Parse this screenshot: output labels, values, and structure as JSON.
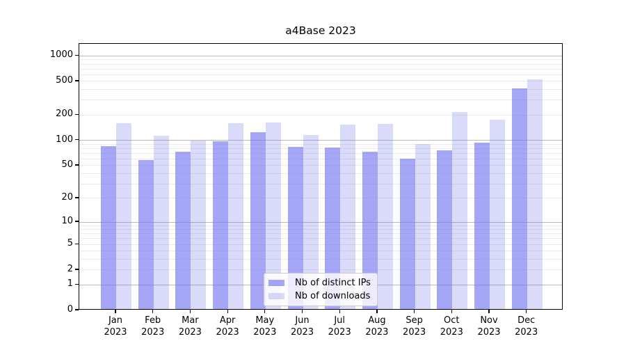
{
  "title": "a4Base 2023",
  "chart_data": {
    "type": "bar",
    "title": "a4Base 2023",
    "categories": [
      "Jan 2023",
      "Feb 2023",
      "Mar 2023",
      "Apr 2023",
      "May 2023",
      "Jun 2023",
      "Jul 2023",
      "Aug 2023",
      "Sep 2023",
      "Oct 2023",
      "Nov 2023",
      "Dec 2023"
    ],
    "series": [
      {
        "name": "Nb of distinct IPs",
        "color": "rgba(118,118,241,0.65)",
        "flat_color": "#a6a6f6",
        "values": [
          82,
          56,
          71,
          94,
          120,
          81,
          79,
          70,
          58,
          73,
          90,
          401
        ]
      },
      {
        "name": "Nb of downloads",
        "color": "rgba(107,107,231,0.25)",
        "flat_color": "#dadaf9",
        "values": [
          153,
          110,
          95,
          154,
          157,
          111,
          148,
          150,
          87,
          209,
          170,
          506
        ]
      }
    ],
    "yscale": "log1p",
    "ylim": [
      0,
      1380
    ],
    "yticks": [
      1000,
      500,
      200,
      100,
      50,
      20,
      10,
      5,
      2,
      1,
      0
    ],
    "major_gridlines": [
      1,
      10,
      100,
      1000
    ],
    "minor_gridlines": [
      2,
      3,
      4,
      5,
      6,
      7,
      8,
      9,
      20,
      30,
      40,
      50,
      60,
      70,
      80,
      90,
      200,
      300,
      400,
      500,
      600,
      700,
      800,
      900
    ],
    "grid": "horizontal major+minor",
    "legend_position": "lower center",
    "xlabel": "",
    "ylabel": ""
  },
  "colors": {
    "bar_distinct_ips": "#a6a6f6",
    "bar_downloads": "#dadaf9",
    "grid_major": "#b9b9b9",
    "grid_minor": "#ebebeb",
    "axis": "#000000",
    "legend_border": "#cccccc"
  }
}
